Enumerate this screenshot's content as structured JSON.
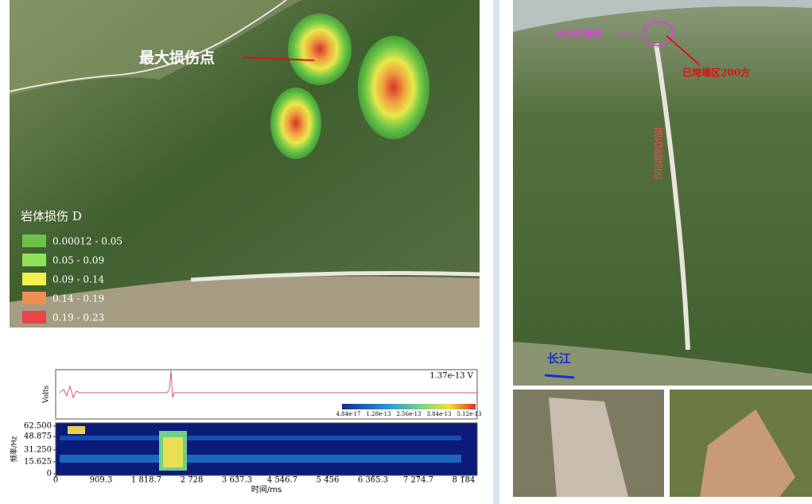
{
  "damage_map": {
    "annotation": "最大损伤点",
    "legend_title": "岩体损伤 D",
    "legend": [
      {
        "label": "0.00012 - 0.05",
        "color": "#6dc24a"
      },
      {
        "label": "0.05 - 0.09",
        "color": "#8fe35a"
      },
      {
        "label": "0.09 - 0.14",
        "color": "#f2f04a"
      },
      {
        "label": "0.14 - 0.19",
        "color": "#ef8e52"
      },
      {
        "label": "0.19 - 0.23",
        "color": "#e8454b"
      }
    ]
  },
  "signal": {
    "amplitude_label": "1.37e-13 V",
    "y_label": "Volts",
    "colorbar": [
      "4.84e-17",
      "1.28e-13",
      "2.56e-13",
      "3.84e-13",
      "5.12e-13"
    ],
    "spectrogram": {
      "y_label": "频率/Hz",
      "x_label": "时间/ms",
      "xlim": [
        0,
        8184
      ],
      "ylim": [
        0,
        62.5
      ],
      "xticks": [
        0,
        {
          "value": 909.3,
          "label": "909.3"
        },
        {
          "value": 1818.7,
          "label": "1 818.7"
        },
        {
          "value": 2728,
          "label": "2 728"
        },
        {
          "value": 3637.3,
          "label": "3 637.3"
        },
        {
          "value": 4546.7,
          "label": "4 546.7"
        },
        {
          "value": 5456,
          "label": "5 456"
        },
        {
          "value": 6365.3,
          "label": "6 365.3"
        },
        {
          "value": 7274.7,
          "label": "7 274.7"
        },
        {
          "value": 8184,
          "label": "8 184"
        }
      ],
      "yticks": [
        0,
        {
          "value": 15.625,
          "label": "15.625"
        },
        {
          "value": 31.25,
          "label": "31.250"
        },
        {
          "value": 48.875,
          "label": "48.875"
        },
        {
          "value": 62.5,
          "label": "62.500"
        }
      ]
    }
  },
  "slope_photo": {
    "label_rock": "WD危岩体",
    "label_collapse": "已垮塌区200方",
    "label_rockfall": "落石散落区",
    "label_river": "长江"
  }
}
